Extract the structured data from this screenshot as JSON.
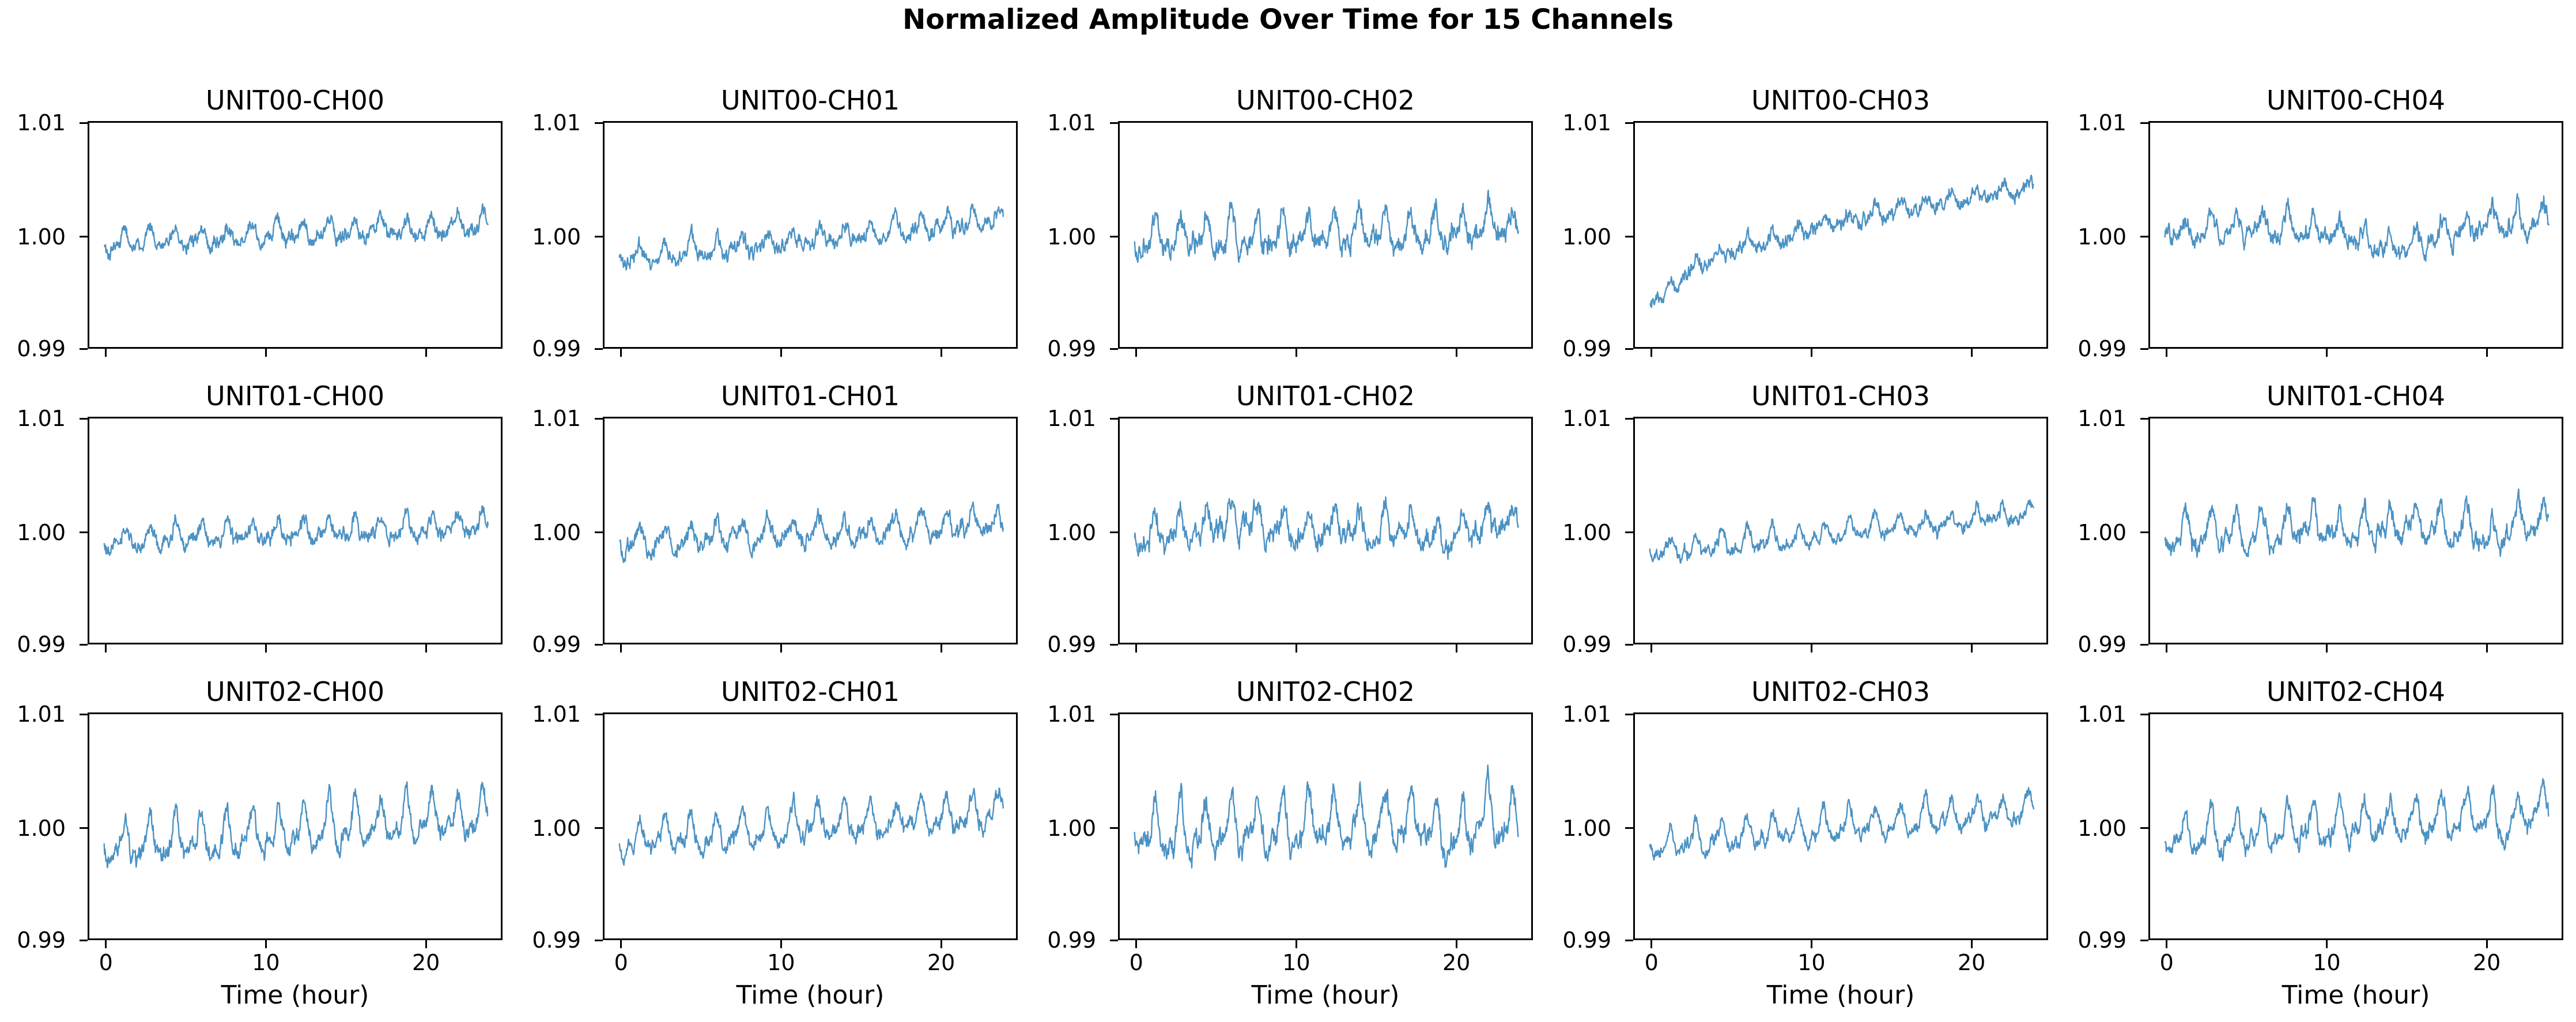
{
  "suptitle": "Normalized Amplitude Over Time for 15 Channels",
  "line_color": "#4C92C3",
  "axes": {
    "xlabel": "Time (hour)",
    "xlim": [
      0,
      24
    ],
    "ylim": [
      0.99,
      1.01
    ],
    "ytick_labels": [
      "1.01",
      "1.00",
      "0.99"
    ],
    "ytick_values": [
      1.01,
      1.0,
      0.99
    ],
    "xtick_labels": [
      "0",
      "10",
      "20"
    ],
    "xtick_values": [
      0,
      10,
      20
    ],
    "grid": false,
    "layout": "3 rows x 5 columns, x tick labels and x axis label on bottom row only"
  },
  "chart_data": [
    {
      "type": "line",
      "title": "UNIT00-CH00",
      "x_range_hours": [
        0,
        24
      ],
      "period_hours": 1.6,
      "baseline_start": 0.9994,
      "baseline_end": 1.0008,
      "trend": "linear",
      "osc_amplitude": 0.0011,
      "noise": 0.00042,
      "events": [],
      "seed": 101
    },
    {
      "type": "line",
      "title": "UNIT00-CH01",
      "x_range_hours": [
        0,
        24
      ],
      "period_hours": 1.6,
      "baseline_start": 0.9979,
      "baseline_end": 1.0014,
      "trend": "linear",
      "osc_amplitude": 0.0012,
      "noise": 0.00042,
      "events": [],
      "seed": 102
    },
    {
      "type": "line",
      "title": "UNIT00-CH02",
      "x_range_hours": [
        0,
        24
      ],
      "period_hours": 1.6,
      "baseline_start": 0.9996,
      "baseline_end": 1.0007,
      "trend": "linear",
      "osc_amplitude": 0.0019,
      "noise": 0.0006,
      "events": [],
      "seed": 103
    },
    {
      "type": "line",
      "title": "UNIT00-CH03",
      "x_range_hours": [
        0,
        24
      ],
      "period_hours": 1.6,
      "baseline_start": 0.9938,
      "baseline_end": 1.0042,
      "trend": "sqrt",
      "osc_amplitude": 0.0008,
      "noise": 0.0004,
      "events": [
        {
          "kind": "dip",
          "center_hour": 1.0,
          "width_hours": 2.2,
          "depth": 0.0011
        }
      ],
      "seed": 104
    },
    {
      "type": "line",
      "title": "UNIT00-CH04",
      "x_range_hours": [
        0,
        24
      ],
      "period_hours": 1.6,
      "baseline_start": 1.0004,
      "baseline_end": 1.0012,
      "trend": "linear",
      "osc_amplitude": 0.0014,
      "noise": 0.0005,
      "events": [
        {
          "kind": "dip",
          "center_hour": 14.5,
          "width_hours": 7,
          "depth": 0.0019
        }
      ],
      "seed": 105
    },
    {
      "type": "line",
      "title": "UNIT01-CH00",
      "x_range_hours": [
        0,
        24
      ],
      "period_hours": 1.6,
      "baseline_start": 0.9992,
      "baseline_end": 1.0005,
      "trend": "linear",
      "osc_amplitude": 0.0013,
      "noise": 0.00042,
      "events": [],
      "seed": 106
    },
    {
      "type": "line",
      "title": "UNIT01-CH01",
      "x_range_hours": [
        0,
        24
      ],
      "period_hours": 1.6,
      "baseline_start": 0.9989,
      "baseline_end": 1.0006,
      "trend": "linear",
      "osc_amplitude": 0.0015,
      "noise": 0.00045,
      "events": [],
      "seed": 107
    },
    {
      "type": "line",
      "title": "UNIT01-CH02",
      "x_range_hours": [
        0,
        24
      ],
      "period_hours": 1.6,
      "baseline_start": 0.9997,
      "baseline_end": 1.0004,
      "trend": "linear",
      "osc_amplitude": 0.0018,
      "noise": 0.0006,
      "events": [
        {
          "kind": "bump",
          "center_hour": 6,
          "width_hours": 5,
          "depth": -0.0012
        },
        {
          "kind": "dip",
          "center_hour": 19,
          "width_hours": 3,
          "depth": 0.001
        }
      ],
      "seed": 108
    },
    {
      "type": "line",
      "title": "UNIT01-CH03",
      "x_range_hours": [
        0,
        24
      ],
      "period_hours": 1.6,
      "baseline_start": 0.9981,
      "baseline_end": 1.0015,
      "trend": "linear",
      "osc_amplitude": 0.0011,
      "noise": 0.00035,
      "events": [],
      "seed": 109
    },
    {
      "type": "line",
      "title": "UNIT01-CH04",
      "x_range_hours": [
        0,
        24
      ],
      "period_hours": 1.6,
      "baseline_start": 0.9996,
      "baseline_end": 1.0006,
      "trend": "linear",
      "osc_amplitude": 0.0021,
      "noise": 0.00055,
      "events": [
        {
          "kind": "dip",
          "center_hour": 20.5,
          "width_hours": 1.6,
          "depth": 0.0014
        }
      ],
      "seed": 110
    },
    {
      "type": "line",
      "title": "UNIT02-CH00",
      "x_range_hours": [
        0,
        24
      ],
      "period_hours": 1.6,
      "baseline_start": 0.9981,
      "baseline_end": 1.0011,
      "trend": "linear",
      "osc_amplitude": 0.0026,
      "noise": 0.0005,
      "events": [],
      "seed": 111
    },
    {
      "type": "line",
      "title": "UNIT02-CH01",
      "x_range_hours": [
        0,
        24
      ],
      "period_hours": 1.6,
      "baseline_start": 0.9985,
      "baseline_end": 1.0014,
      "trend": "linear",
      "osc_amplitude": 0.0019,
      "noise": 0.00045,
      "events": [],
      "seed": 112
    },
    {
      "type": "line",
      "title": "UNIT02-CH02",
      "x_range_hours": [
        0,
        24
      ],
      "period_hours": 1.6,
      "baseline_start": 0.9994,
      "baseline_end": 1.0007,
      "trend": "linear",
      "osc_amplitude": 0.0031,
      "noise": 0.00065,
      "events": [
        {
          "kind": "dip",
          "center_hour": 20,
          "width_hours": 2.5,
          "depth": 0.0014
        }
      ],
      "seed": 113
    },
    {
      "type": "line",
      "title": "UNIT02-CH03",
      "x_range_hours": [
        0,
        24
      ],
      "period_hours": 1.6,
      "baseline_start": 0.9984,
      "baseline_end": 1.0015,
      "trend": "linear",
      "osc_amplitude": 0.0017,
      "noise": 0.0004,
      "events": [],
      "seed": 114
    },
    {
      "type": "line",
      "title": "UNIT02-CH04",
      "x_range_hours": [
        0,
        24
      ],
      "period_hours": 1.6,
      "baseline_start": 0.9989,
      "baseline_end": 1.0014,
      "trend": "linear",
      "osc_amplitude": 0.0024,
      "noise": 0.0005,
      "events": [
        {
          "kind": "dip",
          "center_hour": 21.3,
          "width_hours": 1.6,
          "depth": 0.0012
        }
      ],
      "seed": 115
    }
  ]
}
